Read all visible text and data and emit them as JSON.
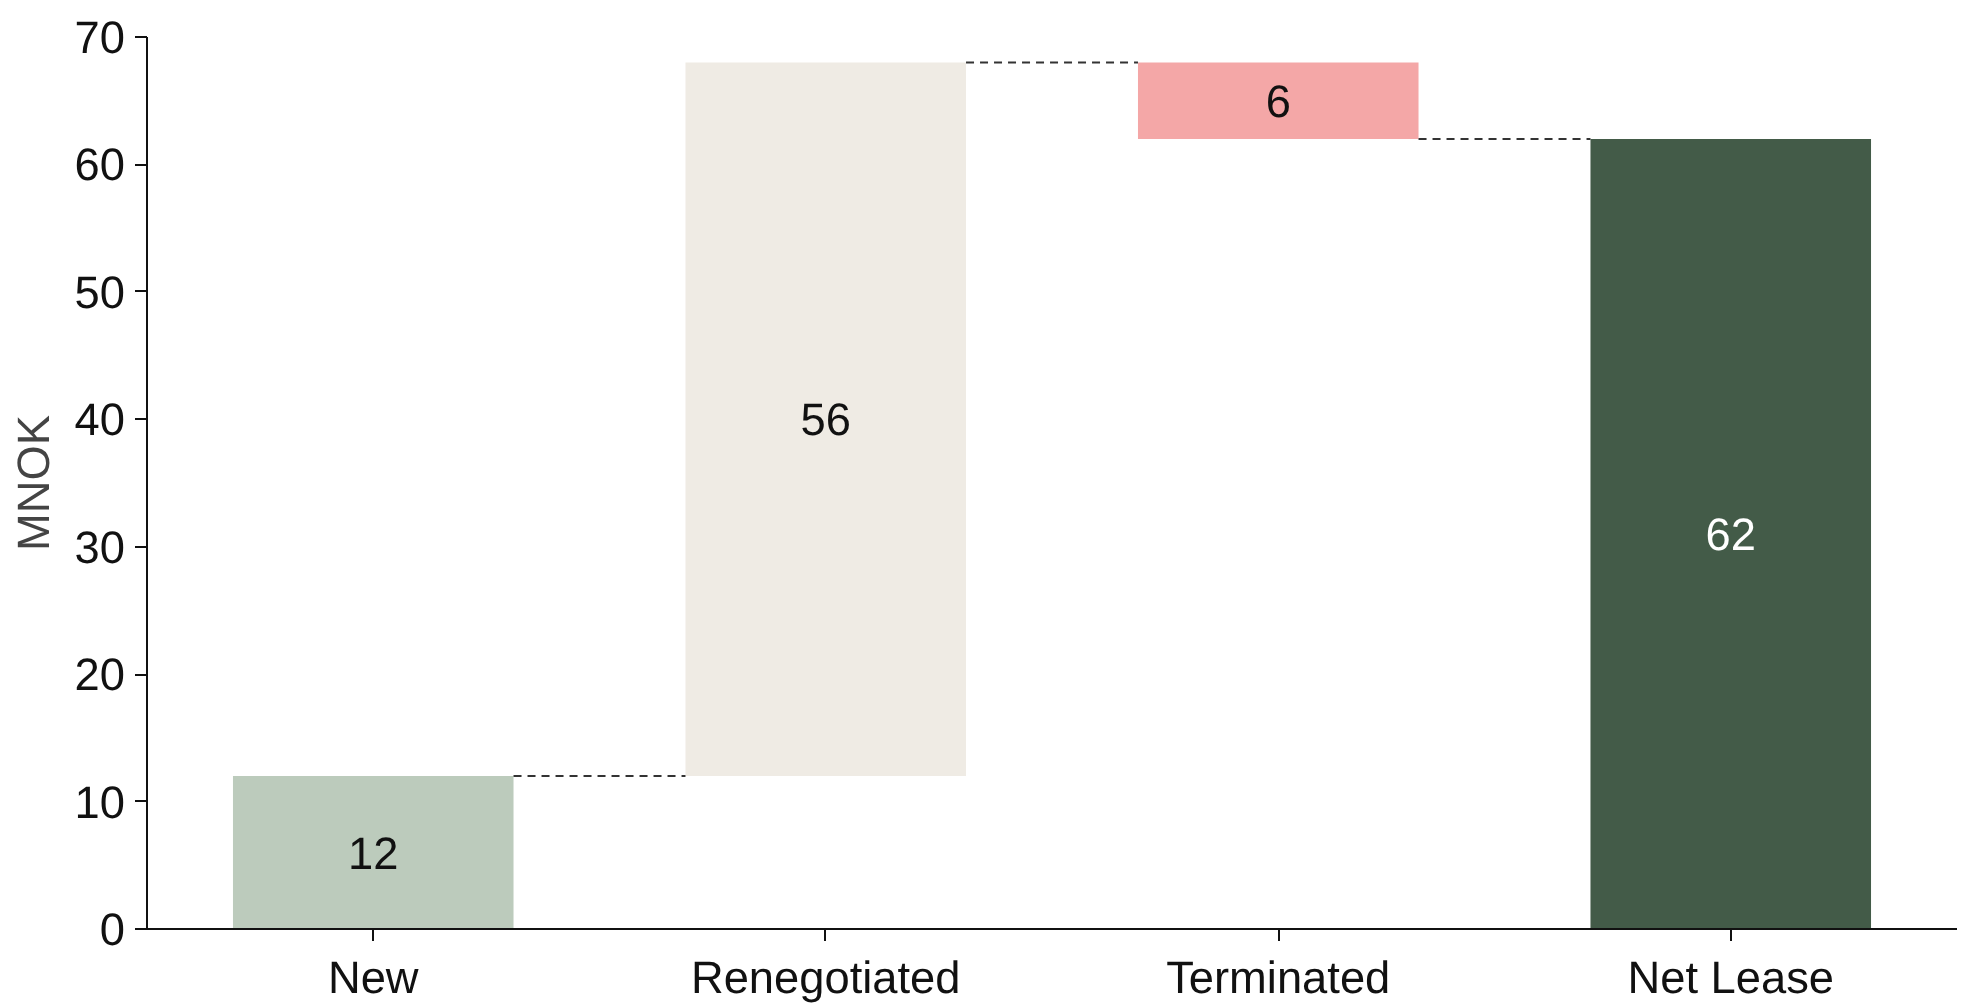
{
  "chart_data": {
    "type": "bar",
    "ylabel": "MNOK",
    "categories": [
      "New",
      "Renegotiated",
      "Terminated",
      "Net Lease"
    ],
    "values": [
      12,
      56,
      6,
      62
    ],
    "base": [
      0,
      12,
      62,
      0
    ],
    "colors": [
      "#bccbbc",
      "#efebe4",
      "#f4a7a7",
      "#435b48"
    ],
    "data_labels": true,
    "ylim": [
      0,
      70
    ],
    "yticks": [
      0,
      10,
      20,
      30,
      40,
      50,
      60,
      70
    ],
    "ref_lines": [
      {
        "axis": "y",
        "value": 12,
        "color": "#333333",
        "line_style": "dashed"
      },
      {
        "axis": "y",
        "value": 68,
        "color": "#333333",
        "line_style": "dashed"
      },
      {
        "axis": "y",
        "value": 62,
        "color": "#333333",
        "line_style": "dashed"
      }
    ],
    "grid": false
  }
}
